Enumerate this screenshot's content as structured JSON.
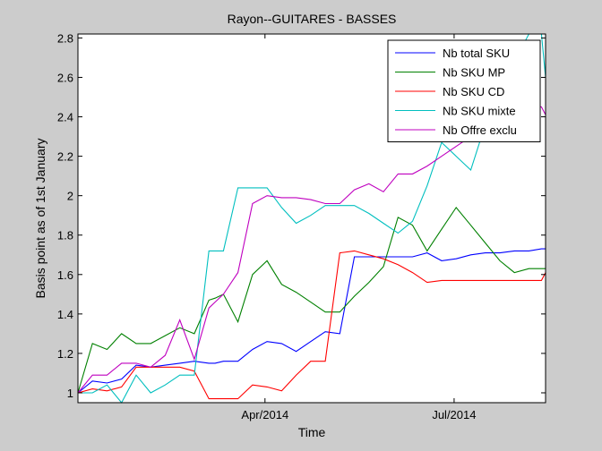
{
  "chart_data": {
    "type": "line",
    "title": "Rayon--GUITARES - BASSES",
    "xlabel": "Time",
    "ylabel": "Basis point as of 1st January",
    "x": [
      "2014-01-01",
      "2014-01-08",
      "2014-01-15",
      "2014-01-22",
      "2014-01-29",
      "2014-02-05",
      "2014-02-12",
      "2014-02-19",
      "2014-02-26",
      "2014-03-05",
      "2014-03-08",
      "2014-03-12",
      "2014-03-19",
      "2014-03-26",
      "2014-04-02",
      "2014-04-09",
      "2014-04-16",
      "2014-04-23",
      "2014-04-30",
      "2014-05-07",
      "2014-05-14",
      "2014-05-21",
      "2014-05-28",
      "2014-06-04",
      "2014-06-11",
      "2014-06-18",
      "2014-06-25",
      "2014-07-02",
      "2014-07-09",
      "2014-07-16",
      "2014-07-23",
      "2014-07-30",
      "2014-08-06",
      "2014-08-12",
      "2014-08-14"
    ],
    "xticks": [
      {
        "value": "2014-04-01",
        "label": "Apr/2014"
      },
      {
        "value": "2014-07-01",
        "label": "Jul/2014"
      }
    ],
    "xlim": [
      "2014-01-01",
      "2014-08-14"
    ],
    "yticks": [
      1,
      1.2,
      1.4,
      1.6,
      1.8,
      2,
      2.2,
      2.4,
      2.6,
      2.8
    ],
    "ytick_labels": [
      "1",
      "1.2",
      "1.4",
      "1.6",
      "1.8",
      "2",
      "2.2",
      "2.4",
      "2.6",
      "2.8"
    ],
    "ylim": [
      0.95,
      2.82
    ],
    "grid": false,
    "legend_position": "top-right",
    "series": [
      {
        "name": "Nb total SKU",
        "color": "#0000ff",
        "values": [
          1.0,
          1.06,
          1.05,
          1.07,
          1.14,
          1.13,
          1.14,
          1.15,
          1.16,
          1.15,
          1.15,
          1.16,
          1.16,
          1.22,
          1.26,
          1.25,
          1.21,
          1.26,
          1.31,
          1.3,
          1.69,
          1.69,
          1.69,
          1.69,
          1.69,
          1.71,
          1.67,
          1.68,
          1.7,
          1.71,
          1.71,
          1.72,
          1.72,
          1.73,
          1.73
        ]
      },
      {
        "name": "Nb SKU MP",
        "color": "#008000",
        "values": [
          1.0,
          1.25,
          1.22,
          1.3,
          1.25,
          1.25,
          1.29,
          1.33,
          1.3,
          1.47,
          1.48,
          1.5,
          1.36,
          1.6,
          1.67,
          1.55,
          1.51,
          1.46,
          1.41,
          1.41,
          1.49,
          1.56,
          1.64,
          1.89,
          1.85,
          1.72,
          1.83,
          1.94,
          1.85,
          1.76,
          1.67,
          1.61,
          1.63,
          1.63,
          1.63
        ]
      },
      {
        "name": "Nb SKU CD",
        "color": "#ff0000",
        "values": [
          1.0,
          1.02,
          1.01,
          1.03,
          1.13,
          1.13,
          1.13,
          1.13,
          1.11,
          0.97,
          0.97,
          0.97,
          0.97,
          1.04,
          1.03,
          1.01,
          1.09,
          1.16,
          1.16,
          1.71,
          1.72,
          1.7,
          1.68,
          1.65,
          1.61,
          1.56,
          1.57,
          1.57,
          1.57,
          1.57,
          1.57,
          1.57,
          1.57,
          1.57,
          1.61
        ]
      },
      {
        "name": "Nb SKU mixte",
        "color": "#00bfbf",
        "values": [
          1.0,
          1.0,
          1.04,
          0.95,
          1.09,
          1.0,
          1.04,
          1.09,
          1.09,
          1.72,
          1.72,
          1.72,
          2.04,
          2.04,
          2.04,
          1.94,
          1.86,
          1.9,
          1.95,
          1.95,
          1.95,
          1.91,
          1.86,
          1.81,
          1.87,
          2.05,
          2.27,
          2.2,
          2.13,
          2.36,
          2.51,
          2.68,
          2.82,
          2.82,
          2.6
        ]
      },
      {
        "name": "Nb Offre exclu",
        "color": "#bf00bf",
        "values": [
          1.0,
          1.09,
          1.09,
          1.15,
          1.15,
          1.13,
          1.19,
          1.37,
          1.17,
          1.43,
          1.46,
          1.5,
          1.61,
          1.96,
          2.0,
          1.99,
          1.99,
          1.98,
          1.96,
          1.96,
          2.03,
          2.06,
          2.02,
          2.11,
          2.11,
          2.15,
          2.2,
          2.25,
          2.3,
          2.35,
          2.4,
          2.43,
          2.46,
          2.45,
          2.41
        ]
      }
    ]
  }
}
